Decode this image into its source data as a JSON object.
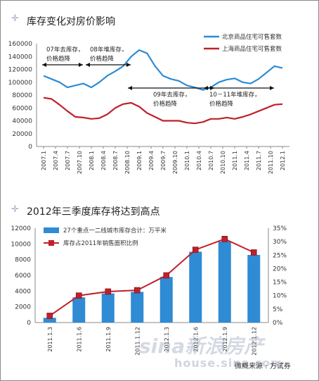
{
  "watermark": {
    "brand": "sina新浪房产",
    "url": "house.sina.com"
  },
  "credit": "微概来源 : 方试券",
  "chart_data": [
    {
      "type": "line",
      "title": "库存变化对房价影响",
      "ylim": [
        0,
        160000
      ],
      "yticks": [
        "0",
        "20000",
        "40000",
        "60000",
        "80000",
        "100000",
        "120000",
        "140000",
        "160000"
      ],
      "xticks": [
        "2007.1",
        "2007.4",
        "2007.7",
        "2007.10",
        "2008.1",
        "2008.4",
        "2008.7",
        "2008.10",
        "2009.1",
        "2009.4",
        "2009.7",
        "2009.10",
        "2010.1",
        "2010.4",
        "2010.7",
        "2010.10",
        "2011.1",
        "2011.4",
        "2011.7",
        "2011.10",
        "2012.1"
      ],
      "series": [
        {
          "name": "北京商品住宅可售套数",
          "color": "#2e8bd4",
          "values": [
            110000,
            105000,
            100000,
            92000,
            95000,
            98000,
            92000,
            100000,
            110000,
            117000,
            125000,
            140000,
            150000,
            145000,
            125000,
            110000,
            105000,
            102000,
            95000,
            92000,
            88000,
            92000,
            100000,
            104000,
            106000,
            100000,
            98000,
            105000,
            115000,
            125000,
            122000
          ]
        },
        {
          "name": "上海商品住宅可售套数",
          "color": "#c0202a",
          "values": [
            76000,
            74000,
            65000,
            55000,
            46000,
            45000,
            43000,
            44000,
            50000,
            60000,
            66000,
            68000,
            62000,
            52000,
            46000,
            40000,
            40000,
            40000,
            37000,
            36000,
            38000,
            43000,
            43000,
            45000,
            43000,
            46000,
            50000,
            55000,
            60000,
            65000,
            66000
          ]
        }
      ],
      "annotations": [
        {
          "text": "07年去库存，价格趋降",
          "lines": [
            "07年去库存，",
            "价格趋降"
          ]
        },
        {
          "text": "08年堆库存，价格趋降",
          "lines": [
            "08年堆库存，",
            "价格趋降"
          ]
        },
        {
          "text": "09年去库存，价格趋降",
          "lines": [
            "09年去库存，",
            "价格趋降"
          ]
        },
        {
          "text": "10－11年堆库存，价格趋降",
          "lines": [
            "10－11年堆库存，",
            "价格趋降"
          ]
        }
      ]
    },
    {
      "type": "bar",
      "title": "2012年三季度库存将达到高点",
      "categories": [
        "2011.1.3",
        "2011.1.6",
        "2011.1.9",
        "2011.1.12",
        "2012.1.3",
        "2012.1.6",
        "2012.1.9",
        "2012.1.12"
      ],
      "ylim_left": [
        0,
        12000
      ],
      "yticks_left": [
        "0",
        "2000",
        "4000",
        "6000",
        "8000",
        "10000",
        "12000"
      ],
      "ylim_right": [
        0,
        35
      ],
      "yticks_right": [
        "0%",
        "5%",
        "10%",
        "15%",
        "20%",
        "25%",
        "30%",
        "35%"
      ],
      "series": [
        {
          "name": "27个重点一二线城市库存合计：万平米",
          "color": "#2e8bd4",
          "axis": "left",
          "values": [
            600,
            3200,
            3700,
            3900,
            5800,
            9000,
            10300,
            8600
          ]
        },
        {
          "name": "库存占2011年销售面积比例",
          "color": "#c0202a",
          "axis": "right",
          "values": [
            2.5,
            10,
            11.5,
            12,
            17.5,
            27,
            31,
            26
          ]
        }
      ]
    }
  ]
}
